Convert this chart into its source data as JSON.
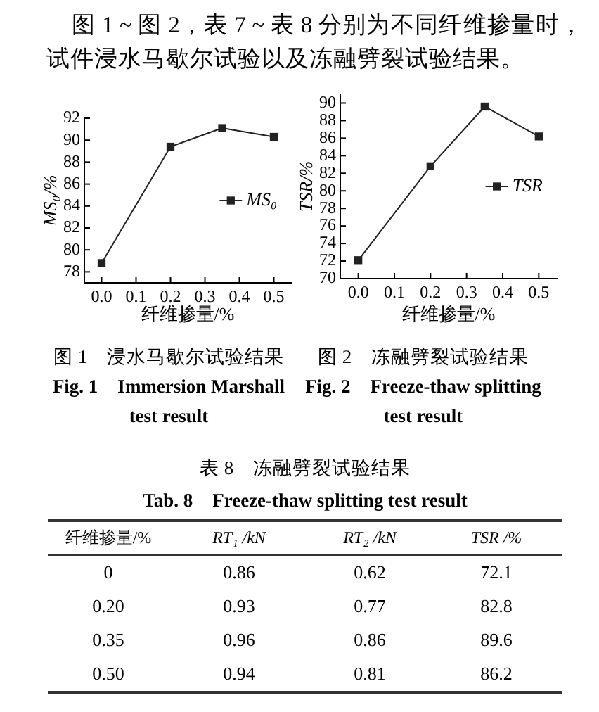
{
  "chart_data": [
    {
      "type": "other",
      "annotations": [
        "图 1 ~ 图 2，表 7 ~ 表 8 分别为不同纤维掺量时，试件浸水马歇尔试验以及冻融劈裂试验结果。"
      ]
    },
    {
      "type": "line",
      "title": "图 1　浸水马歇尔试验结果",
      "subtitle": "Fig. 1　Immersion Marshall test result",
      "xlabel": "纤维掺量/%",
      "ylabel": "MS₀/%",
      "x": [
        0,
        0.2,
        0.35,
        0.5
      ],
      "series": [
        {
          "name": "MS₀",
          "color": "#222222",
          "values": [
            78.8,
            89.4,
            91.1,
            90.3
          ]
        }
      ],
      "xlim": [
        -0.05,
        0.55
      ],
      "xticks": [
        {
          "value": 0,
          "label": "0.0"
        },
        0.1,
        0.2,
        0.3,
        0.4,
        0.5
      ],
      "ylim": [
        77,
        92
      ],
      "yticks": [
        78,
        80,
        82,
        84,
        86,
        88,
        90,
        92
      ],
      "marker": "square",
      "line_style": "solid",
      "legend": "right"
    },
    {
      "type": "line",
      "title": "图 2　冻融劈裂试验结果",
      "subtitle": "Fig. 2　Freeze-thaw splitting test result",
      "xlabel": "纤维掺量/%",
      "ylabel": "TSR/%",
      "x": [
        0,
        0.2,
        0.35,
        0.5
      ],
      "series": [
        {
          "name": "TSR",
          "color": "#222222",
          "values": [
            72.1,
            82.8,
            89.6,
            86.2
          ]
        }
      ],
      "xlim": [
        -0.05,
        0.55
      ],
      "xticks": [
        {
          "value": 0,
          "label": "0.0"
        },
        0.1,
        0.2,
        0.3,
        0.4,
        0.5
      ],
      "ylim": [
        70,
        91
      ],
      "yticks": [
        70,
        72,
        74,
        76,
        78,
        80,
        82,
        84,
        86,
        88,
        90
      ],
      "marker": "square",
      "line_style": "solid",
      "legend": "right"
    },
    {
      "type": "other",
      "title": "表 8　冻融劈裂试验结果",
      "subtitle": "Tab. 8　Freeze-thaw splitting test result",
      "xlabel": "纤维掺量/%",
      "categories": [
        "0",
        "0.20",
        "0.35",
        "0.50"
      ],
      "series": [
        {
          "name": "RT₁ /kN",
          "values": [
            0.86,
            0.93,
            0.96,
            0.94
          ]
        },
        {
          "name": "RT₂ /kN",
          "values": [
            0.62,
            0.77,
            0.86,
            0.81
          ]
        },
        {
          "name": "TSR /%",
          "values": [
            72.1,
            82.8,
            89.6,
            86.2
          ]
        }
      ],
      "data_labels": true
    }
  ]
}
